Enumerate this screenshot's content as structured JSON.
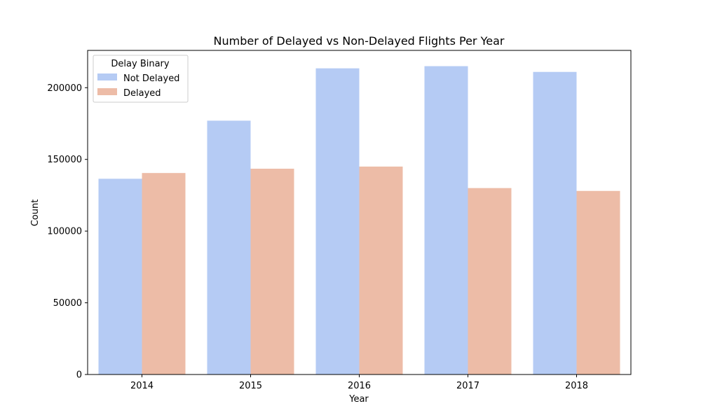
{
  "chart_data": {
    "type": "bar",
    "title": "Number of Delayed vs Non-Delayed Flights Per Year",
    "xlabel": "Year",
    "ylabel": "Count",
    "categories": [
      "2014",
      "2015",
      "2016",
      "2017",
      "2018"
    ],
    "series": [
      {
        "name": "Not Delayed",
        "color": "#b5cbf4",
        "values": [
          136500,
          177000,
          213500,
          215000,
          211000
        ]
      },
      {
        "name": "Delayed",
        "color": "#edbca7",
        "values": [
          140500,
          143500,
          145000,
          130000,
          128000
        ]
      }
    ],
    "ylim": [
      0,
      226000
    ],
    "yticks": [
      0,
      50000,
      100000,
      150000,
      200000
    ],
    "ytick_labels": [
      "0",
      "50000",
      "100000",
      "150000",
      "200000"
    ],
    "grid": false,
    "legend": {
      "title": "Delay Binary",
      "position": "top-left"
    }
  }
}
